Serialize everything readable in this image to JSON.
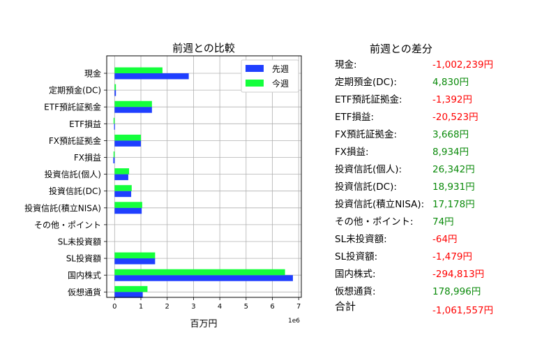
{
  "colors": {
    "previous": "#1f3fff",
    "current": "#14ff3c",
    "positive": "#0a8a0a",
    "negative": "#ff0000"
  },
  "chart_data": {
    "type": "bar",
    "orientation": "horizontal",
    "title": "前週との比較",
    "xlabel": "百万円",
    "ylabel": "",
    "x_scale_note": "1e6",
    "xlim": [
      -0.3,
      7.1
    ],
    "x_ticks": [
      0,
      1,
      2,
      3,
      4,
      5,
      6,
      7
    ],
    "grid": true,
    "legend_position": "top-right",
    "categories": [
      "現金",
      "定期預金(DC)",
      "ETF預託証拠金",
      "ETF損益",
      "FX預託証拠金",
      "FX損益",
      "投資信託(個人)",
      "投資信託(DC)",
      "投資信託(積立NISA)",
      "その他・ポイント",
      "SL未投資額",
      "SL投資額",
      "国内株式",
      "仮想通貨"
    ],
    "series": [
      {
        "name": "先週",
        "values": [
          2.82,
          0.05,
          1.42,
          -0.02,
          1.0,
          -0.05,
          0.52,
          0.63,
          1.03,
          0.0,
          0.0,
          1.54,
          6.78,
          1.07
        ]
      },
      {
        "name": "今週",
        "values": [
          1.82,
          0.05,
          1.42,
          -0.04,
          1.0,
          -0.04,
          0.55,
          0.65,
          1.05,
          0.0,
          0.0,
          1.54,
          6.48,
          1.25
        ]
      }
    ]
  },
  "diff": {
    "title": "前週との差分",
    "rows": [
      {
        "label": "現金:",
        "value": "-1,002,239円",
        "sign": "negative"
      },
      {
        "label": "定期預金(DC):",
        "value": "4,830円",
        "sign": "positive"
      },
      {
        "label": "ETF預託証拠金:",
        "value": "-1,392円",
        "sign": "negative"
      },
      {
        "label": "ETF損益:",
        "value": "-20,523円",
        "sign": "negative"
      },
      {
        "label": "FX預託証拠金:",
        "value": "3,668円",
        "sign": "positive"
      },
      {
        "label": "FX損益:",
        "value": "8,934円",
        "sign": "positive"
      },
      {
        "label": "投資信託(個人):",
        "value": "26,342円",
        "sign": "positive"
      },
      {
        "label": "投資信託(DC):",
        "value": "18,931円",
        "sign": "positive"
      },
      {
        "label": "投資信託(積立NISA):",
        "value": "17,178円",
        "sign": "positive"
      },
      {
        "label": "その他・ポイント:",
        "value": "74円",
        "sign": "positive"
      },
      {
        "label": "SL未投資額:",
        "value": "-64円",
        "sign": "negative"
      },
      {
        "label": "SL投資額:",
        "value": "-1,479円",
        "sign": "negative"
      },
      {
        "label": "国内株式:",
        "value": "-294,813円",
        "sign": "negative"
      },
      {
        "label": "仮想通貨:",
        "value": "178,996円",
        "sign": "positive"
      }
    ],
    "total_label": "合計",
    "total_value": "-1,061,557円",
    "total_sign": "negative"
  }
}
